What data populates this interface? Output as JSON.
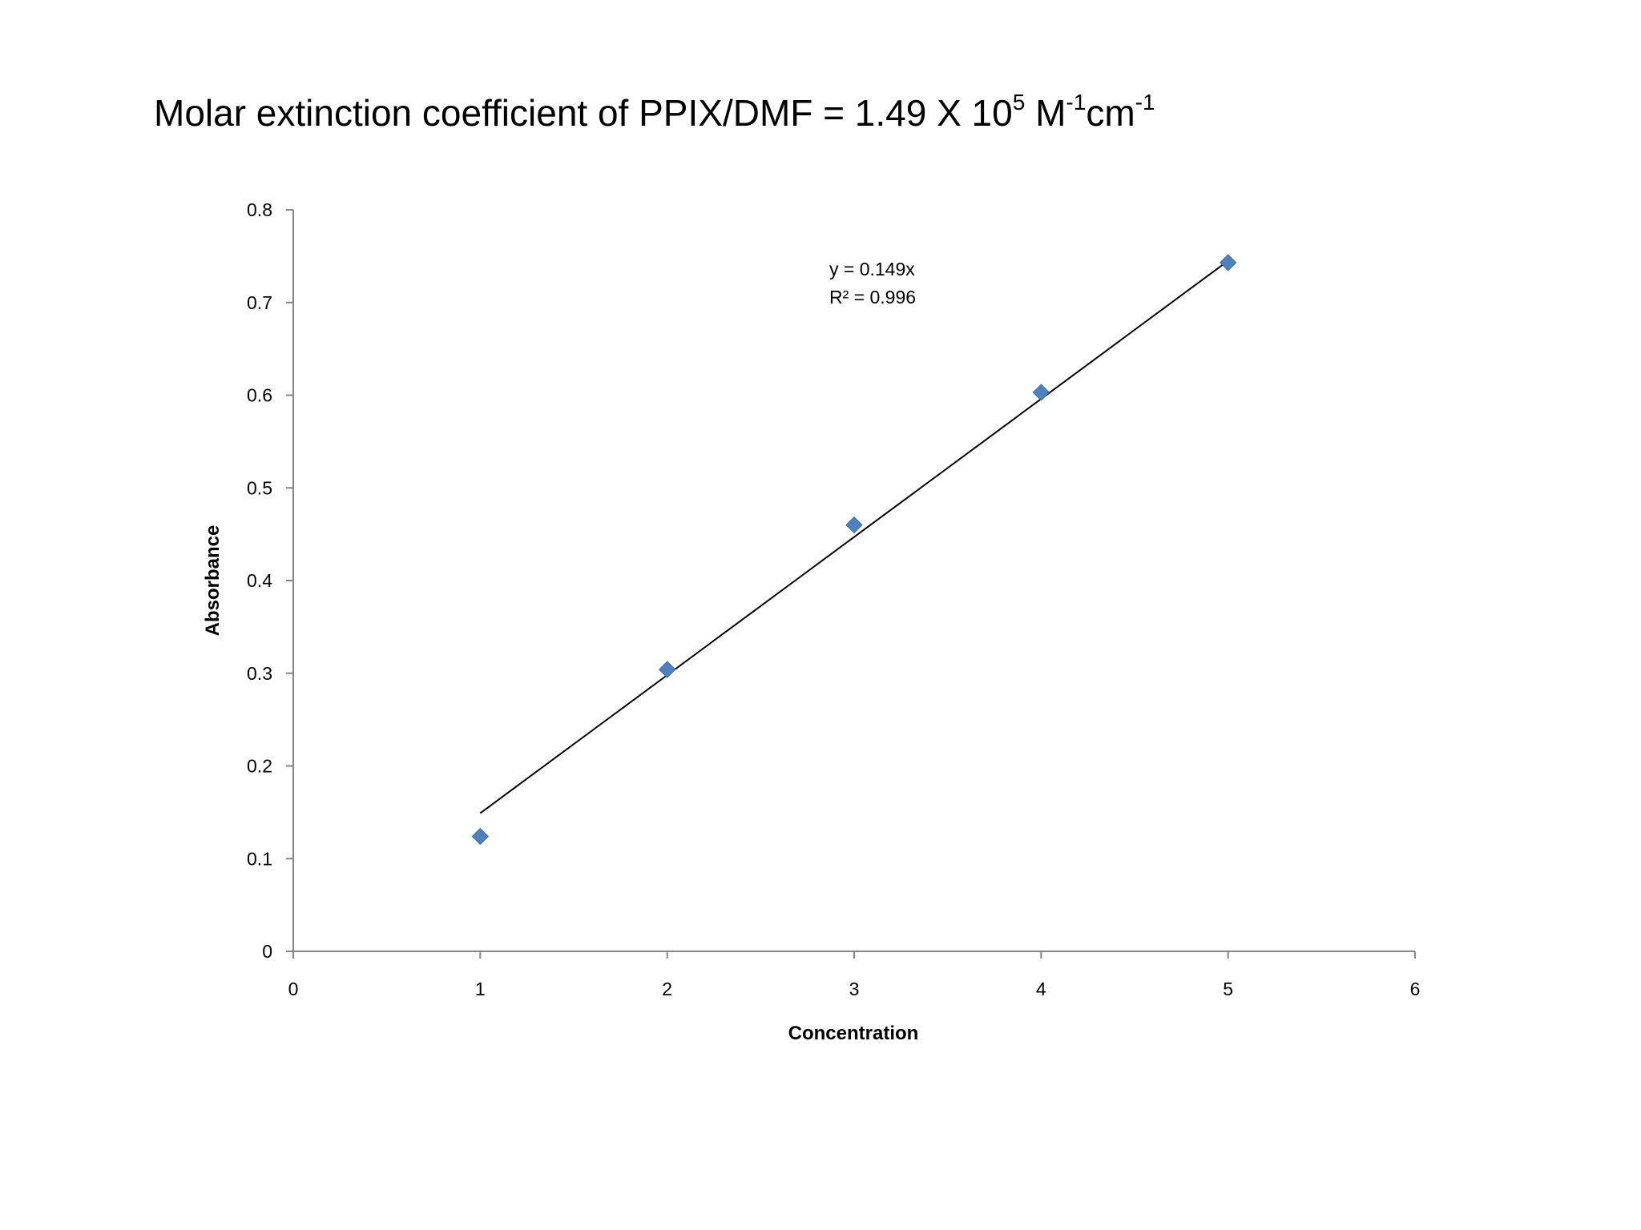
{
  "title": {
    "main": "Molar extinction coefficient of PPIX/DMF = 1.49 X 10",
    "exp1": "5",
    "unit1": " M",
    "exp2": "-1",
    "unit2": "cm",
    "exp3": "-1"
  },
  "chart_data": {
    "type": "scatter",
    "xlabel": "Concentration",
    "ylabel": "Absorbance",
    "xlim": [
      0,
      6
    ],
    "ylim": [
      0,
      0.8
    ],
    "xticks": [
      "0",
      "1",
      "2",
      "3",
      "4",
      "5",
      "6"
    ],
    "yticks": [
      "0",
      "0.1",
      "0.2",
      "0.3",
      "0.4",
      "0.5",
      "0.6",
      "0.7",
      "0.8"
    ],
    "grid": false,
    "legend": "none",
    "marker_color": "#4F81BD",
    "series": [
      {
        "points": [
          {
            "x": 1,
            "y": 0.124
          },
          {
            "x": 2,
            "y": 0.304
          },
          {
            "x": 3,
            "y": 0.46
          },
          {
            "x": 4,
            "y": 0.603
          },
          {
            "x": 5,
            "y": 0.743
          }
        ]
      }
    ],
    "trendline": {
      "slope": 0.149,
      "x_range": [
        1,
        5
      ],
      "equation": "y = 0.149x",
      "r_squared": "R² = 0.996"
    }
  }
}
